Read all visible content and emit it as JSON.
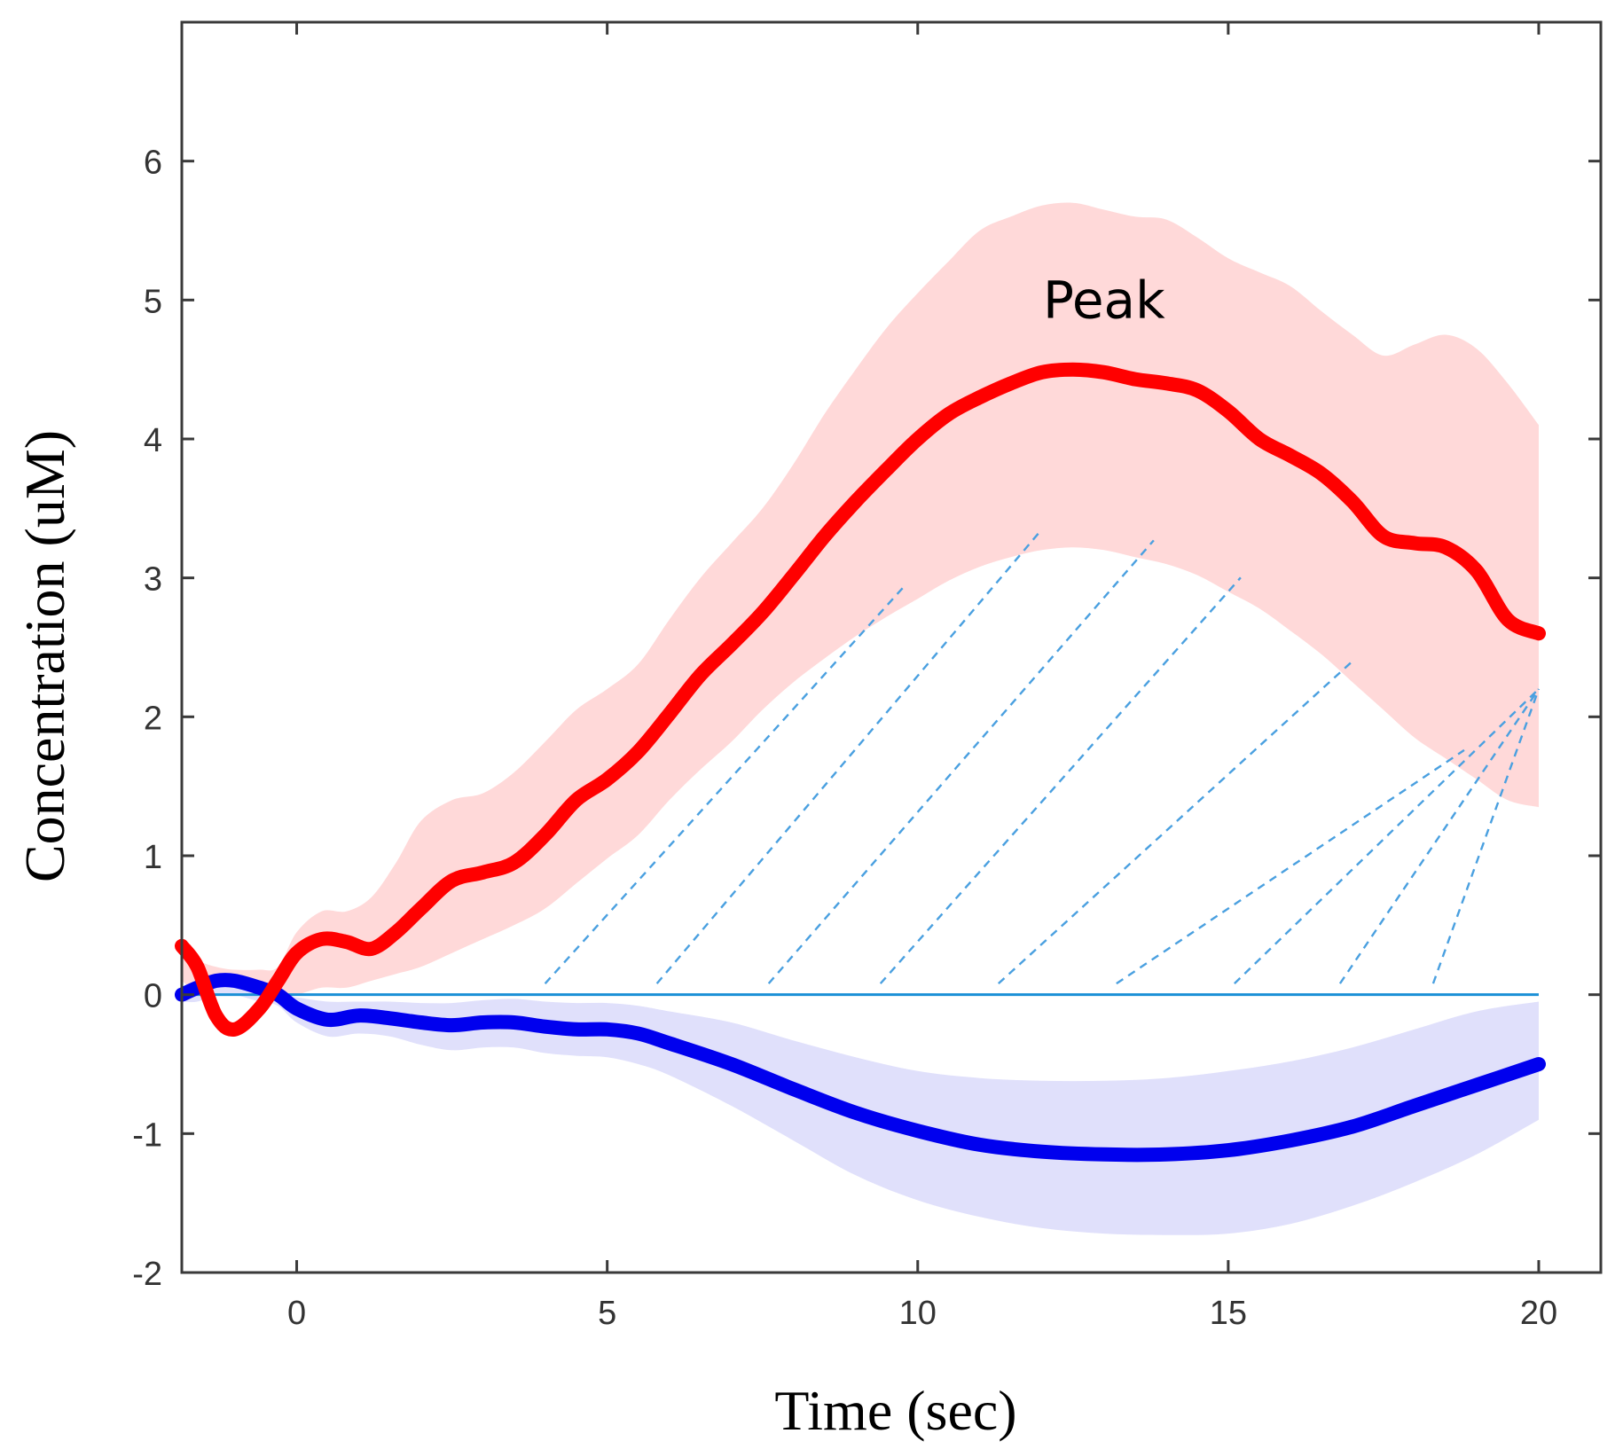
{
  "chart_data": {
    "type": "line",
    "title": "",
    "xlabel": "Time (sec)",
    "ylabel": "Concentration (uM)",
    "xlim": [
      -1.85,
      21
    ],
    "ylim": [
      -2,
      7
    ],
    "xticks": [
      0,
      5,
      10,
      15,
      20
    ],
    "yticks": [
      -2,
      -1,
      0,
      1,
      2,
      3,
      4,
      5,
      6
    ],
    "xtick_labels": [
      "0",
      "5",
      "10",
      "15",
      "20"
    ],
    "ytick_labels": [
      "-2",
      "-1",
      "0",
      "1",
      "2",
      "3",
      "4",
      "5",
      "6"
    ],
    "grid": false,
    "annotations": [
      {
        "text": "Peak",
        "x": 13.0,
        "y": 5.0
      }
    ],
    "baseline": {
      "y": 0,
      "color": "#1a8fd6"
    },
    "hatch": {
      "description": "dashed diagonal hatching between baseline and red curve",
      "color": "#4aa0e0",
      "x_start": [
        4.0,
        5.8,
        7.6,
        9.4,
        11.3,
        13.2,
        15.1,
        16.8,
        18.3
      ],
      "x_end": [
        9.8,
        12.0,
        13.8,
        15.2,
        17.0,
        18.8,
        20.0,
        20.0,
        20.0
      ]
    },
    "series": [
      {
        "name": "red",
        "color": "#ff0000",
        "band_color": "#ffd9d9",
        "x": [
          -1.85,
          -1.6,
          -1.3,
          -1.0,
          -0.6,
          -0.3,
          0.0,
          0.4,
          0.8,
          1.2,
          1.6,
          2.0,
          2.5,
          3.0,
          3.5,
          4.0,
          4.5,
          5.0,
          5.5,
          6.0,
          6.5,
          7.0,
          7.5,
          8.0,
          8.5,
          9.0,
          9.5,
          10.0,
          10.5,
          11.0,
          11.5,
          12.0,
          12.5,
          13.0,
          13.5,
          14.0,
          14.5,
          15.0,
          15.5,
          16.0,
          16.5,
          17.0,
          17.5,
          18.0,
          18.5,
          19.0,
          19.5,
          20.0
        ],
        "values": [
          0.35,
          0.2,
          -0.15,
          -0.25,
          -0.1,
          0.1,
          0.3,
          0.4,
          0.38,
          0.33,
          0.45,
          0.62,
          0.82,
          0.88,
          0.95,
          1.15,
          1.4,
          1.55,
          1.75,
          2.02,
          2.3,
          2.52,
          2.75,
          3.02,
          3.3,
          3.55,
          3.78,
          4.0,
          4.18,
          4.3,
          4.4,
          4.48,
          4.5,
          4.48,
          4.43,
          4.4,
          4.35,
          4.2,
          4.0,
          3.88,
          3.75,
          3.55,
          3.3,
          3.25,
          3.22,
          3.05,
          2.7,
          2.6
        ],
        "upper": [
          0.35,
          0.25,
          0.2,
          0.18,
          0.18,
          0.2,
          0.45,
          0.6,
          0.6,
          0.7,
          0.95,
          1.25,
          1.4,
          1.45,
          1.6,
          1.82,
          2.05,
          2.2,
          2.38,
          2.7,
          3.0,
          3.25,
          3.5,
          3.82,
          4.18,
          4.5,
          4.8,
          5.05,
          5.28,
          5.5,
          5.6,
          5.68,
          5.7,
          5.65,
          5.6,
          5.58,
          5.45,
          5.3,
          5.2,
          5.1,
          4.92,
          4.75,
          4.6,
          4.68,
          4.75,
          4.65,
          4.4,
          4.1
        ],
        "lower": [
          0.1,
          0.02,
          0.0,
          0.0,
          0.0,
          0.0,
          0.0,
          0.05,
          0.05,
          0.1,
          0.15,
          0.2,
          0.3,
          0.4,
          0.5,
          0.62,
          0.8,
          0.98,
          1.15,
          1.4,
          1.62,
          1.82,
          2.05,
          2.25,
          2.42,
          2.58,
          2.72,
          2.85,
          2.98,
          3.08,
          3.15,
          3.2,
          3.22,
          3.2,
          3.15,
          3.1,
          3.02,
          2.9,
          2.78,
          2.62,
          2.45,
          2.25,
          2.05,
          1.85,
          1.7,
          1.55,
          1.4,
          1.35
        ]
      },
      {
        "name": "blue",
        "color": "#0000ee",
        "band_color": "#e0e0fb",
        "x": [
          -1.85,
          -1.6,
          -1.3,
          -1.0,
          -0.6,
          -0.3,
          0.0,
          0.5,
          1.0,
          1.5,
          2.0,
          2.5,
          3.0,
          3.5,
          4.0,
          4.5,
          5.0,
          5.5,
          6.0,
          7.0,
          8.0,
          9.0,
          10.0,
          11.0,
          12.0,
          13.0,
          14.0,
          15.0,
          16.0,
          17.0,
          18.0,
          19.0,
          20.0
        ],
        "values": [
          0.0,
          0.05,
          0.1,
          0.1,
          0.05,
          0.0,
          -0.1,
          -0.18,
          -0.15,
          -0.17,
          -0.2,
          -0.22,
          -0.2,
          -0.2,
          -0.23,
          -0.25,
          -0.25,
          -0.28,
          -0.35,
          -0.5,
          -0.68,
          -0.85,
          -0.98,
          -1.08,
          -1.13,
          -1.15,
          -1.15,
          -1.12,
          -1.05,
          -0.95,
          -0.8,
          -0.65,
          -0.5
        ],
        "upper": [
          0.0,
          0.05,
          0.1,
          0.1,
          0.05,
          0.0,
          -0.02,
          -0.05,
          -0.05,
          -0.05,
          -0.06,
          -0.06,
          -0.04,
          -0.03,
          -0.05,
          -0.06,
          -0.06,
          -0.08,
          -0.12,
          -0.2,
          -0.33,
          -0.45,
          -0.55,
          -0.6,
          -0.62,
          -0.62,
          -0.6,
          -0.55,
          -0.48,
          -0.38,
          -0.25,
          -0.12,
          -0.05
        ],
        "lower": [
          -0.05,
          -0.05,
          0.0,
          0.0,
          -0.05,
          -0.08,
          -0.2,
          -0.3,
          -0.28,
          -0.3,
          -0.36,
          -0.4,
          -0.38,
          -0.38,
          -0.42,
          -0.44,
          -0.45,
          -0.5,
          -0.58,
          -0.8,
          -1.05,
          -1.3,
          -1.48,
          -1.6,
          -1.68,
          -1.72,
          -1.73,
          -1.72,
          -1.65,
          -1.52,
          -1.35,
          -1.15,
          -0.9
        ]
      }
    ]
  }
}
